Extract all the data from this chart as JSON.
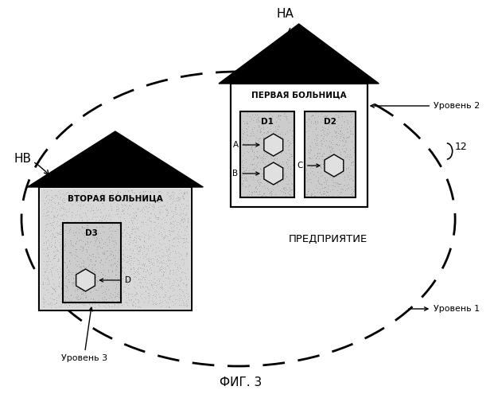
{
  "title": "ФИГ. 3",
  "bg_color": "#ffffff",
  "enterprise_label": "ПРЕДПРИЯТИЕ",
  "level1_label": "Уровень 1",
  "level2_label": "Уровень 2",
  "label_12": "12",
  "hospital1_label": "ПЕРВАЯ БОЛЬНИЦА",
  "hospital2_label": "ВТОРАЯ БОЛЬНИЦА",
  "ha_label": "НА",
  "hb_label": "НВ",
  "d1_label": "D1",
  "d2_label": "D2",
  "d3_label": "D3",
  "node_a": "A",
  "node_b": "B",
  "node_c": "C",
  "node_d": "D",
  "level3_label": "Уровень 3"
}
